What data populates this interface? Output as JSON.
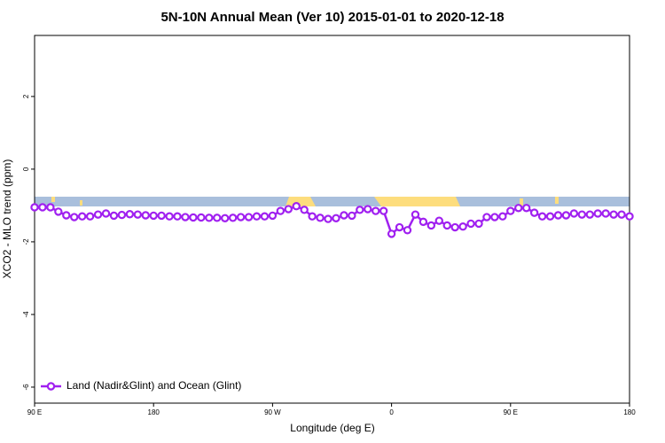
{
  "chart_data": {
    "type": "line",
    "title": "5N-10N Annual Mean (Ver 10)   2015-01-01 to 2020-12-18",
    "x_label": "Longitude (deg E)",
    "y_label": "XCO2 - MLO trend (ppm)",
    "x": [
      90,
      96,
      102,
      108,
      114,
      120,
      126,
      132,
      138,
      144,
      150,
      156,
      162,
      168,
      174,
      180,
      186,
      192,
      198,
      204,
      210,
      216,
      222,
      228,
      234,
      240,
      246,
      252,
      258,
      264,
      270,
      276,
      282,
      288,
      294,
      300,
      306,
      312,
      318,
      324,
      330,
      336,
      342,
      348,
      354,
      360,
      366,
      372,
      378,
      384,
      390,
      396,
      402,
      408,
      414,
      420,
      426,
      432,
      438,
      444,
      450,
      456,
      462,
      468,
      474,
      480,
      486,
      492,
      498,
      504,
      510,
      516,
      522,
      528,
      534,
      540
    ],
    "series": [
      {
        "name": "Land (Nadir&Glint) and Ocean (Glint)",
        "color": "#a020f0",
        "values": [
          -1.05,
          -1.05,
          -1.05,
          -1.17,
          -1.27,
          -1.32,
          -1.3,
          -1.3,
          -1.25,
          -1.22,
          -1.28,
          -1.26,
          -1.24,
          -1.25,
          -1.27,
          -1.28,
          -1.28,
          -1.3,
          -1.3,
          -1.32,
          -1.33,
          -1.33,
          -1.34,
          -1.34,
          -1.35,
          -1.34,
          -1.32,
          -1.32,
          -1.3,
          -1.3,
          -1.28,
          -1.15,
          -1.1,
          -1.02,
          -1.12,
          -1.3,
          -1.34,
          -1.37,
          -1.35,
          -1.27,
          -1.28,
          -1.12,
          -1.1,
          -1.15,
          -1.15,
          -1.78,
          -1.6,
          -1.68,
          -1.25,
          -1.45,
          -1.55,
          -1.42,
          -1.55,
          -1.6,
          -1.58,
          -1.5,
          -1.5,
          -1.32,
          -1.32,
          -1.3,
          -1.15,
          -1.07,
          -1.07,
          -1.2,
          -1.3,
          -1.3,
          -1.27,
          -1.27,
          -1.22,
          -1.25,
          -1.25,
          -1.22,
          -1.22,
          -1.25,
          -1.25,
          -1.3
        ]
      }
    ],
    "xlim": [
      90,
      540
    ],
    "xticks": [
      {
        "value": 90,
        "label": "90 E"
      },
      180,
      {
        "value": 270,
        "label": "90 W"
      },
      {
        "value": 360,
        "label": "0"
      },
      {
        "value": 450,
        "label": "90 E"
      },
      {
        "value": 540,
        "label": "180"
      }
    ],
    "ylim": [
      -6.44,
      3.68
    ],
    "yticks": [
      -6,
      -4,
      -2,
      0,
      2
    ],
    "legend": "bottom-left"
  }
}
